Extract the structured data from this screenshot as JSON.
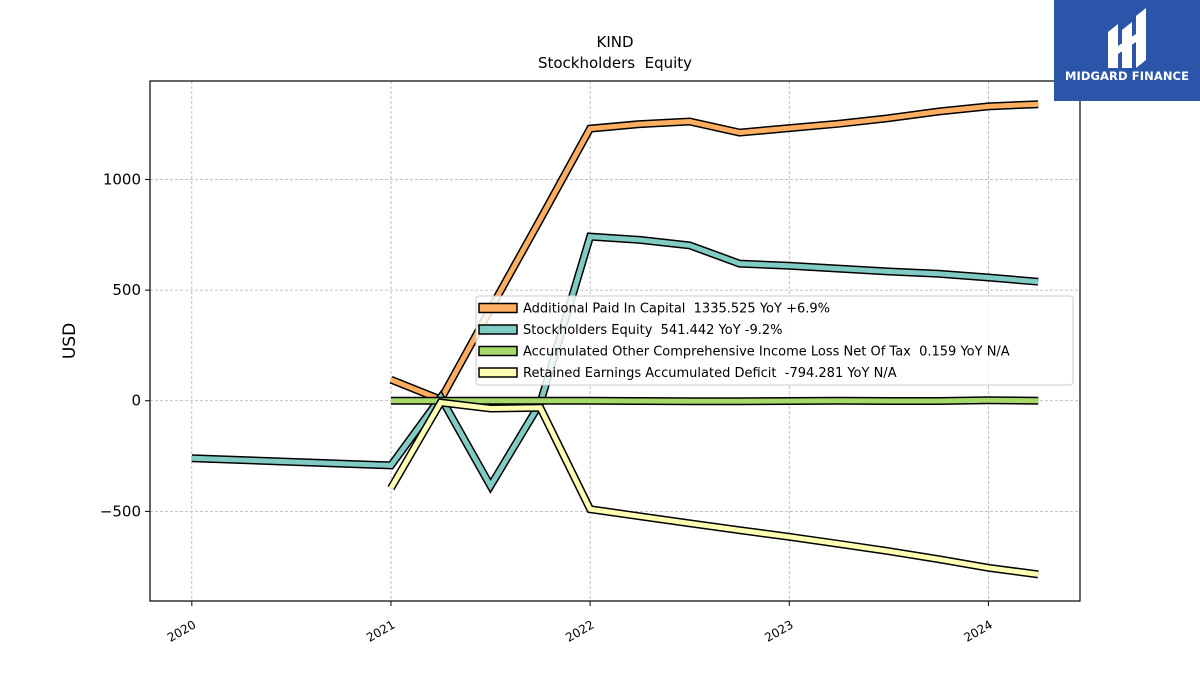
{
  "chart_data": {
    "type": "line",
    "title": "KIND",
    "subtitle": "Stockholders  Equity",
    "ylabel": "USD",
    "xlabel": "",
    "xlim": [
      2019.79,
      2024.46
    ],
    "ylim": [
      -905,
      1445
    ],
    "x_ticks": [
      {
        "value": 2020,
        "label": "2020"
      },
      {
        "value": 2021,
        "label": "2021"
      },
      {
        "value": 2022,
        "label": "2022"
      },
      {
        "value": 2023,
        "label": "2023"
      },
      {
        "value": 2024,
        "label": "2024"
      }
    ],
    "y_ticks": [
      {
        "value": 1000,
        "label": "1000"
      },
      {
        "value": 500,
        "label": "500"
      },
      {
        "value": 0,
        "label": "0"
      },
      {
        "value": -500,
        "label": "−500"
      }
    ],
    "grid": true,
    "legend_position": "center-right",
    "series": [
      {
        "name": "Additional Paid In Capital  1335.525 YoY +6.9%",
        "color": "#fdae61",
        "points": [
          [
            2021.0,
            95
          ],
          [
            2021.25,
            5
          ],
          [
            2021.5,
            415
          ],
          [
            2021.75,
            820
          ],
          [
            2022.0,
            1230
          ],
          [
            2022.25,
            1250
          ],
          [
            2022.5,
            1262
          ],
          [
            2022.75,
            1212
          ],
          [
            2023.0,
            1232
          ],
          [
            2023.25,
            1252
          ],
          [
            2023.5,
            1277
          ],
          [
            2023.75,
            1307
          ],
          [
            2024.0,
            1330
          ],
          [
            2024.25,
            1340
          ]
        ]
      },
      {
        "name": "Stockholders Equity  541.442 YoY -9.2%",
        "color": "#80cbc4",
        "points": [
          [
            2020.0,
            -260
          ],
          [
            2021.0,
            -292
          ],
          [
            2021.25,
            15
          ],
          [
            2021.5,
            -385
          ],
          [
            2021.75,
            -10
          ],
          [
            2022.0,
            742
          ],
          [
            2022.25,
            727
          ],
          [
            2022.5,
            702
          ],
          [
            2022.75,
            620
          ],
          [
            2023.0,
            610
          ],
          [
            2023.25,
            597
          ],
          [
            2023.5,
            584
          ],
          [
            2023.75,
            574
          ],
          [
            2024.0,
            557
          ],
          [
            2024.25,
            538
          ]
        ]
      },
      {
        "name": "Accumulated Other Comprehensive Income Loss Net Of Tax  0.159 YoY N/A",
        "color": "#a6d96a",
        "points": [
          [
            2021.0,
            0
          ],
          [
            2021.25,
            0
          ],
          [
            2021.5,
            0
          ],
          [
            2021.75,
            0
          ],
          [
            2022.0,
            0
          ],
          [
            2022.25,
            -1
          ],
          [
            2022.5,
            -2
          ],
          [
            2022.75,
            -2
          ],
          [
            2023.0,
            -1
          ],
          [
            2023.25,
            0
          ],
          [
            2023.5,
            -1
          ],
          [
            2023.75,
            -1
          ],
          [
            2024.0,
            2
          ],
          [
            2024.25,
            0
          ]
        ]
      },
      {
        "name": "Retained Earnings Accumulated Deficit  -794.281 YoY N/A",
        "color": "#ffffb3",
        "points": [
          [
            2021.0,
            -395
          ],
          [
            2021.25,
            -8
          ],
          [
            2021.5,
            -35
          ],
          [
            2021.75,
            -32
          ],
          [
            2022.0,
            -490
          ],
          [
            2022.25,
            -522
          ],
          [
            2022.5,
            -554
          ],
          [
            2022.75,
            -585
          ],
          [
            2023.0,
            -615
          ],
          [
            2023.25,
            -647
          ],
          [
            2023.5,
            -680
          ],
          [
            2023.75,
            -716
          ],
          [
            2024.0,
            -755
          ],
          [
            2024.25,
            -785
          ]
        ]
      }
    ]
  },
  "logo": {
    "text": "MIDGARD FINANCE"
  }
}
